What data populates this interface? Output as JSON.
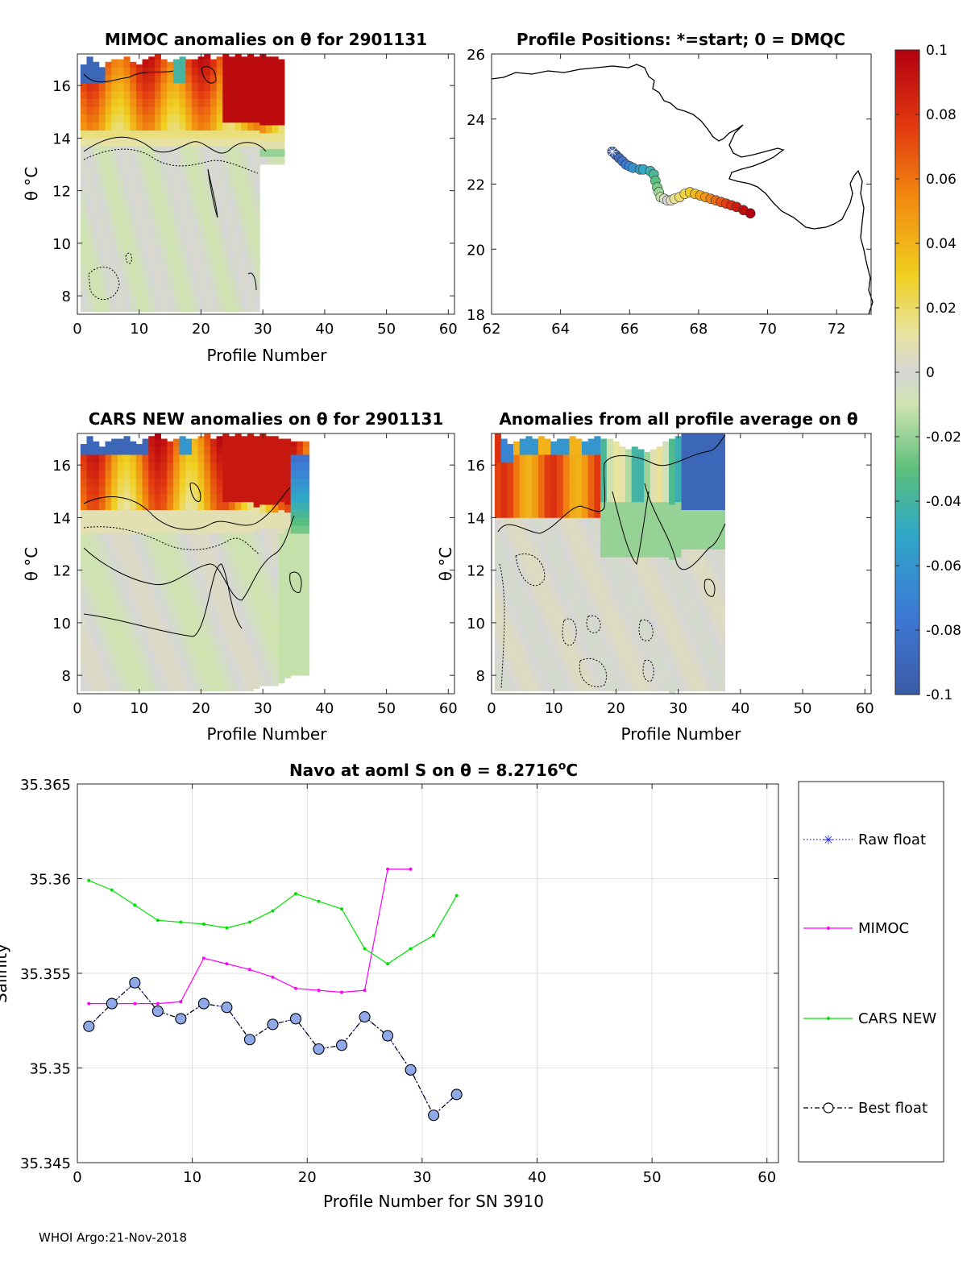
{
  "footer": "WHOI Argo:21-Nov-2018",
  "colorbar": {
    "ticks": [
      "0.1",
      "0.08",
      "0.06",
      "0.04",
      "0.02",
      "0",
      "-0.02",
      "-0.04",
      "-0.06",
      "-0.08",
      "-0.1"
    ],
    "range": [
      -0.1,
      0.1
    ]
  },
  "colors": {
    "raw_float": "#1f1fe0",
    "mimoc": "#ff00ff",
    "cars": "#00e000",
    "best_float": "#000000",
    "best_fill": "#8fa8e8",
    "land": "#000000",
    "nan": "#ffffff"
  },
  "chart_data": [
    {
      "id": "mimoc",
      "type": "heatmap",
      "title": "MIMOC anomalies on θ  for 2901131",
      "xlabel": "Profile Number",
      "ylabel": "θ °C",
      "xlim": [
        0,
        61
      ],
      "ylim": [
        7.3,
        17.2
      ],
      "xticks": [
        "0",
        "10",
        "20",
        "30",
        "40",
        "50",
        "60"
      ],
      "yticks": [
        "8",
        "10",
        "12",
        "14",
        "16"
      ],
      "data_x_extent": [
        1,
        34
      ],
      "theta_top_by_profile": [
        16.8,
        17.1,
        16.9,
        16.7,
        16.9,
        17.0,
        17.0,
        17.1,
        16.9,
        16.8,
        17.0,
        17.1,
        17.2,
        17.0,
        16.9,
        17.0,
        17.1,
        17.0,
        17.0,
        17.1,
        17.2,
        17.0,
        17.1,
        17.2,
        17.1,
        17.2,
        17.1,
        17.2,
        17.1,
        17.2,
        17.1,
        17.1,
        17.0
      ],
      "theta_bottom_by_profile": [
        7.4,
        7.4,
        7.4,
        7.4,
        7.4,
        7.4,
        7.4,
        7.4,
        7.4,
        7.4,
        7.4,
        7.4,
        7.4,
        7.4,
        7.4,
        7.4,
        7.4,
        7.4,
        7.4,
        7.4,
        7.4,
        7.4,
        7.4,
        7.4,
        7.4,
        7.4,
        7.4,
        7.4,
        7.4,
        13.0,
        13.0,
        13.0,
        13.0
      ]
    },
    {
      "id": "positions",
      "type": "scatter",
      "title": "Profile Positions: *=start; 0 = DMQC",
      "xlim": [
        62,
        73
      ],
      "ylim": [
        18,
        26
      ],
      "xticks": [
        "62",
        "64",
        "66",
        "68",
        "70",
        "72"
      ],
      "yticks": [
        "18",
        "20",
        "22",
        "24",
        "26"
      ],
      "lon": [
        65.5,
        65.6,
        65.7,
        65.8,
        65.9,
        66.0,
        66.1,
        66.3,
        66.4,
        66.6,
        66.7,
        66.75,
        66.8,
        66.85,
        66.9,
        67.0,
        67.1,
        67.2,
        67.3,
        67.45,
        67.6,
        67.75,
        67.9,
        68.05,
        68.2,
        68.35,
        68.5,
        68.65,
        68.8,
        68.95,
        69.1,
        69.3,
        69.5
      ],
      "lat": [
        23.0,
        22.9,
        22.8,
        22.7,
        22.6,
        22.55,
        22.5,
        22.45,
        22.45,
        22.4,
        22.3,
        22.1,
        21.9,
        21.75,
        21.6,
        21.55,
        21.5,
        21.5,
        21.55,
        21.6,
        21.7,
        21.75,
        21.7,
        21.65,
        21.6,
        21.55,
        21.5,
        21.45,
        21.4,
        21.35,
        21.3,
        21.2,
        21.1
      ]
    },
    {
      "id": "cars",
      "type": "heatmap",
      "title": "CARS NEW anomalies on θ for 2901131",
      "xlabel": "Profile Number",
      "ylabel": "θ °C",
      "xlim": [
        0,
        61
      ],
      "ylim": [
        7.3,
        17.2
      ],
      "xticks": [
        "0",
        "10",
        "20",
        "30",
        "40",
        "50",
        "60"
      ],
      "yticks": [
        "8",
        "10",
        "12",
        "14",
        "16"
      ],
      "data_x_extent": [
        1,
        38
      ],
      "theta_top_by_profile": [
        16.8,
        17.1,
        16.9,
        16.7,
        16.9,
        17.0,
        17.0,
        17.1,
        16.9,
        16.8,
        17.0,
        17.1,
        17.2,
        17.0,
        16.9,
        17.0,
        17.1,
        17.0,
        17.0,
        17.1,
        17.2,
        17.0,
        17.1,
        17.2,
        17.1,
        17.2,
        17.1,
        17.2,
        17.1,
        17.2,
        17.1,
        17.1,
        17.0,
        17.0,
        16.9,
        16.9,
        16.9
      ],
      "theta_bottom_by_profile": [
        7.4,
        7.4,
        7.4,
        7.4,
        7.4,
        7.4,
        7.4,
        7.4,
        7.4,
        7.4,
        7.4,
        7.4,
        7.4,
        7.4,
        7.4,
        7.4,
        7.4,
        7.4,
        7.4,
        7.4,
        7.4,
        7.4,
        7.4,
        7.4,
        7.4,
        7.4,
        7.4,
        7.4,
        7.5,
        7.6,
        7.6,
        7.6,
        7.7,
        7.9,
        8.0,
        8.0,
        8.0
      ]
    },
    {
      "id": "allavg",
      "type": "heatmap",
      "title": "Anomalies from all profile average on θ",
      "xlabel": "Profile Number",
      "ylabel": "θ °C",
      "xlim": [
        0,
        61
      ],
      "ylim": [
        7.3,
        17.2
      ],
      "xticks": [
        "0",
        "10",
        "20",
        "30",
        "40",
        "50",
        "60"
      ],
      "yticks": [
        "8",
        "10",
        "12",
        "14",
        "16"
      ],
      "data_x_extent": [
        1,
        38
      ],
      "theta_top_by_profile": [
        17.2,
        17.0,
        16.8,
        16.9,
        17.0,
        17.1,
        17.0,
        17.1,
        17.0,
        16.9,
        17.0,
        17.0,
        17.1,
        17.0,
        16.9,
        17.0,
        17.1,
        17.0,
        17.0,
        16.9,
        16.7,
        16.6,
        16.7,
        16.6,
        16.5,
        16.6,
        16.7,
        16.9,
        17.0,
        17.1,
        17.2,
        17.2,
        17.2,
        17.2,
        17.2,
        17.2,
        17.2
      ],
      "theta_bottom_by_profile": [
        7.4,
        7.4,
        7.4,
        7.4,
        7.4,
        7.4,
        7.4,
        7.4,
        7.4,
        7.4,
        7.4,
        7.4,
        7.4,
        7.4,
        7.4,
        7.4,
        7.4,
        7.4,
        7.4,
        7.4,
        7.4,
        7.4,
        7.4,
        7.4,
        7.4,
        7.4,
        7.4,
        7.4,
        7.3,
        7.4,
        7.4,
        7.4,
        7.4,
        7.4,
        7.4,
        7.4,
        7.4
      ]
    },
    {
      "id": "salinity",
      "type": "line",
      "title_prefix": "Navo at aoml S on θ = 8.2716",
      "title_suffix_sup": "o",
      "title_suffix": "C",
      "xlabel": "Profile Number for SN 3910",
      "ylabel": "Salinity",
      "xlim": [
        0,
        61
      ],
      "ylim": [
        35.345,
        35.365
      ],
      "xticks": [
        "0",
        "10",
        "20",
        "30",
        "40",
        "50",
        "60"
      ],
      "yticks": [
        "35.345",
        "35.35",
        "35.355",
        "35.36",
        "35.365"
      ],
      "legend_position": "right",
      "series": [
        {
          "name": "Raw float",
          "style": "dotted-asterisk",
          "x": [
            1,
            3,
            5,
            7,
            9,
            11,
            13,
            15,
            17,
            19,
            21,
            23,
            25,
            27,
            29,
            31,
            33
          ],
          "values": [
            35.3522,
            35.3534,
            35.3545,
            35.353,
            35.3526,
            35.3534,
            35.3532,
            35.3515,
            35.3523,
            35.3526,
            35.351,
            35.3512,
            35.3527,
            35.3517,
            35.3499,
            35.3475,
            35.3486
          ]
        },
        {
          "name": "MIMOC",
          "style": "line-dot",
          "x": [
            1,
            3,
            5,
            7,
            9,
            11,
            13,
            15,
            17,
            19,
            21,
            23,
            25,
            27,
            29
          ],
          "values": [
            35.3534,
            35.3534,
            35.3534,
            35.3534,
            35.3535,
            35.3558,
            35.3555,
            35.3552,
            35.3548,
            35.3542,
            35.3541,
            35.354,
            35.3541,
            35.3605,
            35.3605
          ]
        },
        {
          "name": "CARS NEW",
          "style": "line-dot",
          "x": [
            1,
            3,
            5,
            7,
            9,
            11,
            13,
            15,
            17,
            19,
            21,
            23,
            25,
            27,
            29,
            31,
            33
          ],
          "values": [
            35.3599,
            35.3594,
            35.3586,
            35.3578,
            35.3577,
            35.3576,
            35.3574,
            35.3577,
            35.3583,
            35.3592,
            35.3588,
            35.3584,
            35.3563,
            35.3555,
            35.3563,
            35.357,
            35.3591
          ]
        },
        {
          "name": "Best float",
          "style": "dashdot-circle",
          "x": [
            1,
            3,
            5,
            7,
            9,
            11,
            13,
            15,
            17,
            19,
            21,
            23,
            25,
            27,
            29,
            31,
            33
          ],
          "values": [
            35.3522,
            35.3534,
            35.3545,
            35.353,
            35.3526,
            35.3534,
            35.3532,
            35.3515,
            35.3523,
            35.3526,
            35.351,
            35.3512,
            35.3527,
            35.3517,
            35.3499,
            35.3475,
            35.3486
          ]
        }
      ]
    }
  ]
}
